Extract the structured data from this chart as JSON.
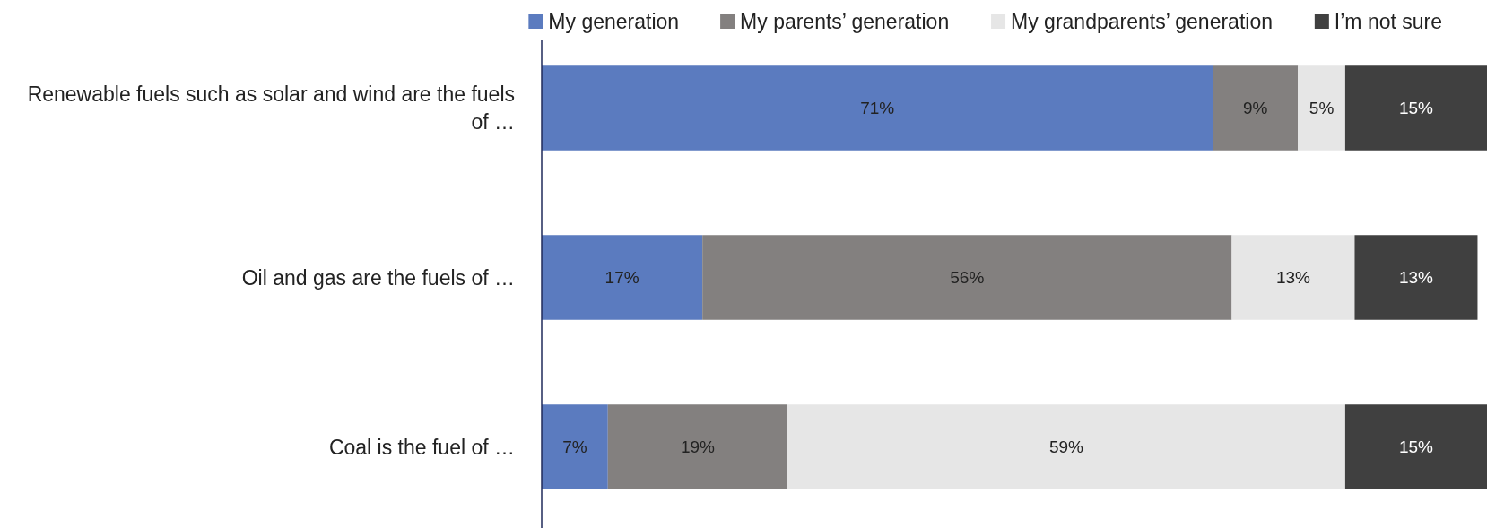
{
  "chart_data": {
    "type": "bar",
    "orientation": "horizontal",
    "stacked": true,
    "legend": "top right",
    "grid": false,
    "tick_labels": "y",
    "xlim": [
      0,
      100
    ],
    "categories": [
      "Renewable fuels such as solar and wind are the fuels of …",
      "Oil and gas are the fuels of …",
      "Coal is the fuel of …"
    ],
    "series": [
      {
        "name": "My generation",
        "color": "#5b7bbf",
        "values": [
          71,
          17,
          7
        ],
        "value_labels": [
          "71%",
          "17%",
          "7%"
        ]
      },
      {
        "name": "My parents’ generation",
        "color": "#83807f",
        "values": [
          9,
          56,
          19
        ],
        "value_labels": [
          "9%",
          "56%",
          "19%"
        ]
      },
      {
        "name": "My grandparents’ generation",
        "color": "#e6e6e6",
        "values": [
          5,
          13,
          59
        ],
        "value_labels": [
          "5%",
          "13%",
          "59%"
        ]
      },
      {
        "name": "I’m not sure",
        "color": "#404040",
        "values": [
          15,
          13,
          15
        ],
        "value_labels": [
          "15%",
          "13%",
          "15%"
        ]
      }
    ]
  }
}
